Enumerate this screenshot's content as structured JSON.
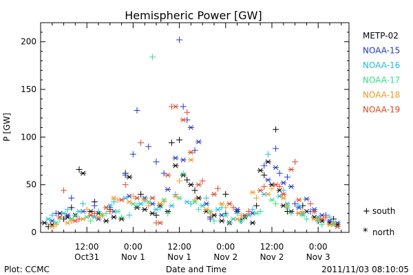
{
  "chart_data": {
    "type": "scatter",
    "title": "Hemispheric Power [GW]",
    "ylabel": "P [GW]",
    "xlabel": "Date and Time",
    "xlim": [
      0,
      80
    ],
    "ylim": [
      0,
      220
    ],
    "yticks": [
      0,
      50,
      100,
      150,
      200
    ],
    "xticks": [
      {
        "x": 12,
        "l1": "12:00",
        "l2": "Oct31"
      },
      {
        "x": 24,
        "l1": "0:00",
        "l2": "Nov 1"
      },
      {
        "x": 36,
        "l1": "12:00",
        "l2": "Nov 1"
      },
      {
        "x": 48,
        "l1": "0:00",
        "l2": "Nov 2"
      },
      {
        "x": 60,
        "l1": "12:00",
        "l2": "Nov 2"
      },
      {
        "x": 72,
        "l1": "0:00",
        "l2": "Nov 3"
      }
    ],
    "marker_legend": {
      "south": "south",
      "north": "north"
    },
    "series": [
      {
        "name": "METP-02",
        "color": "#000000",
        "south": [
          [
            2,
            6
          ],
          [
            6,
            14
          ],
          [
            8,
            26
          ],
          [
            10,
            66
          ],
          [
            14,
            32
          ],
          [
            18,
            24
          ],
          [
            22,
            62
          ],
          [
            26,
            40
          ],
          [
            30,
            18
          ],
          [
            34,
            94
          ],
          [
            36,
            97
          ],
          [
            38,
            55
          ],
          [
            40,
            44
          ],
          [
            44,
            16
          ],
          [
            48,
            40
          ],
          [
            52,
            14
          ],
          [
            56,
            28
          ],
          [
            58,
            60
          ],
          [
            61,
            108
          ],
          [
            64,
            22
          ],
          [
            68,
            28
          ],
          [
            72,
            12
          ],
          [
            76,
            14
          ]
        ],
        "north": [
          [
            1,
            10
          ],
          [
            3,
            8
          ],
          [
            5,
            20
          ],
          [
            7,
            16
          ],
          [
            9,
            18
          ],
          [
            11,
            62
          ],
          [
            13,
            22
          ],
          [
            15,
            20
          ],
          [
            17,
            12
          ],
          [
            19,
            16
          ],
          [
            21,
            14
          ],
          [
            23,
            58
          ],
          [
            25,
            26
          ],
          [
            27,
            24
          ],
          [
            29,
            20
          ],
          [
            31,
            28
          ],
          [
            33,
            22
          ],
          [
            35,
            70
          ],
          [
            37,
            60
          ],
          [
            39,
            50
          ],
          [
            41,
            36
          ],
          [
            43,
            22
          ],
          [
            45,
            18
          ],
          [
            47,
            12
          ],
          [
            49,
            10
          ],
          [
            51,
            22
          ],
          [
            53,
            16
          ],
          [
            55,
            10
          ],
          [
            57,
            65
          ],
          [
            59,
            74
          ],
          [
            60,
            50
          ],
          [
            62,
            44
          ],
          [
            63,
            28
          ],
          [
            65,
            22
          ],
          [
            67,
            20
          ],
          [
            69,
            22
          ],
          [
            71,
            16
          ],
          [
            73,
            12
          ],
          [
            75,
            10
          ],
          [
            77,
            8
          ]
        ]
      },
      {
        "name": "NOAA-15",
        "color": "#2233cc",
        "south": [
          [
            4,
            20
          ],
          [
            8,
            36
          ],
          [
            14,
            28
          ],
          [
            18,
            26
          ],
          [
            22,
            60
          ],
          [
            24,
            82
          ],
          [
            25,
            128
          ],
          [
            28,
            90
          ],
          [
            30,
            74
          ],
          [
            32,
            62
          ],
          [
            36,
            202
          ],
          [
            37,
            132
          ],
          [
            38,
            118
          ],
          [
            40,
            86
          ],
          [
            44,
            14
          ],
          [
            48,
            20
          ],
          [
            52,
            12
          ],
          [
            58,
            70
          ],
          [
            61,
            88
          ],
          [
            62,
            62
          ],
          [
            64,
            58
          ],
          [
            66,
            30
          ],
          [
            70,
            22
          ],
          [
            74,
            18
          ]
        ],
        "north": [
          [
            3,
            12
          ],
          [
            7,
            18
          ],
          [
            11,
            22
          ],
          [
            15,
            14
          ],
          [
            19,
            22
          ],
          [
            23,
            38
          ],
          [
            27,
            36
          ],
          [
            29,
            30
          ],
          [
            33,
            45
          ],
          [
            35,
            78
          ],
          [
            37,
            76
          ],
          [
            39,
            110
          ],
          [
            41,
            95
          ],
          [
            43,
            30
          ],
          [
            47,
            18
          ],
          [
            51,
            24
          ],
          [
            55,
            20
          ],
          [
            59,
            55
          ],
          [
            61,
            68
          ],
          [
            63,
            52
          ],
          [
            65,
            48
          ],
          [
            67,
            26
          ],
          [
            69,
            35
          ],
          [
            71,
            24
          ],
          [
            73,
            18
          ],
          [
            75,
            12
          ],
          [
            77,
            10
          ]
        ]
      },
      {
        "name": "NOAA-16",
        "color": "#22bbdd",
        "south": [
          [
            3,
            18
          ],
          [
            7,
            24
          ],
          [
            11,
            30
          ],
          [
            15,
            22
          ],
          [
            19,
            32
          ],
          [
            23,
            18
          ],
          [
            27,
            34
          ],
          [
            31,
            26
          ],
          [
            35,
            40
          ],
          [
            39,
            30
          ],
          [
            43,
            36
          ],
          [
            47,
            26
          ],
          [
            51,
            20
          ],
          [
            55,
            24
          ],
          [
            59,
            82
          ],
          [
            63,
            44
          ],
          [
            67,
            28
          ],
          [
            71,
            22
          ],
          [
            75,
            16
          ]
        ],
        "north": [
          [
            2,
            14
          ],
          [
            6,
            20
          ],
          [
            10,
            22
          ],
          [
            14,
            16
          ],
          [
            18,
            28
          ],
          [
            22,
            36
          ],
          [
            26,
            30
          ],
          [
            30,
            24
          ],
          [
            34,
            28
          ],
          [
            38,
            32
          ],
          [
            42,
            28
          ],
          [
            46,
            24
          ],
          [
            50,
            14
          ],
          [
            54,
            18
          ],
          [
            58,
            40
          ],
          [
            62,
            38
          ],
          [
            64,
            30
          ],
          [
            68,
            20
          ],
          [
            72,
            16
          ],
          [
            76,
            10
          ]
        ]
      },
      {
        "name": "NOAA-17",
        "color": "#33dd88",
        "south": [
          [
            5,
            14
          ],
          [
            9,
            18
          ],
          [
            13,
            12
          ],
          [
            17,
            20
          ],
          [
            21,
            16
          ],
          [
            25,
            28
          ],
          [
            29,
            184
          ],
          [
            33,
            20
          ],
          [
            37,
            62
          ],
          [
            41,
            24
          ],
          [
            45,
            12
          ],
          [
            49,
            10
          ],
          [
            53,
            16
          ],
          [
            57,
            22
          ],
          [
            61,
            30
          ],
          [
            65,
            20
          ],
          [
            69,
            14
          ],
          [
            73,
            8
          ]
        ],
        "north": [
          [
            4,
            10
          ],
          [
            8,
            14
          ],
          [
            12,
            16
          ],
          [
            16,
            18
          ],
          [
            20,
            22
          ],
          [
            24,
            30
          ],
          [
            28,
            32
          ],
          [
            32,
            34
          ],
          [
            36,
            36
          ],
          [
            40,
            32
          ],
          [
            44,
            22
          ],
          [
            48,
            18
          ],
          [
            52,
            12
          ],
          [
            56,
            20
          ],
          [
            60,
            34
          ],
          [
            64,
            26
          ],
          [
            68,
            18
          ],
          [
            72,
            12
          ],
          [
            76,
            8
          ]
        ]
      },
      {
        "name": "NOAA-18",
        "color": "#ee9922",
        "south": [
          [
            4,
            8
          ],
          [
            8,
            12
          ],
          [
            12,
            24
          ],
          [
            16,
            18
          ],
          [
            20,
            34
          ],
          [
            24,
            38
          ],
          [
            28,
            28
          ],
          [
            32,
            32
          ],
          [
            36,
            54
          ],
          [
            40,
            34
          ],
          [
            44,
            20
          ],
          [
            48,
            26
          ],
          [
            52,
            18
          ],
          [
            56,
            36
          ],
          [
            60,
            46
          ],
          [
            64,
            28
          ],
          [
            68,
            22
          ],
          [
            72,
            14
          ],
          [
            76,
            10
          ]
        ],
        "north": [
          [
            3,
            6
          ],
          [
            7,
            10
          ],
          [
            11,
            14
          ],
          [
            15,
            16
          ],
          [
            19,
            36
          ],
          [
            23,
            32
          ],
          [
            27,
            34
          ],
          [
            31,
            30
          ],
          [
            35,
            38
          ],
          [
            39,
            76
          ],
          [
            43,
            24
          ],
          [
            47,
            30
          ],
          [
            51,
            14
          ],
          [
            55,
            42
          ],
          [
            59,
            40
          ],
          [
            63,
            36
          ],
          [
            67,
            20
          ],
          [
            71,
            14
          ],
          [
            75,
            8
          ]
        ]
      },
      {
        "name": "NOAA-19",
        "color": "#dd4422",
        "south": [
          [
            6,
            44
          ],
          [
            10,
            14
          ],
          [
            14,
            20
          ],
          [
            18,
            22
          ],
          [
            22,
            50
          ],
          [
            26,
            94
          ],
          [
            30,
            10
          ],
          [
            34,
            132
          ],
          [
            38,
            126
          ],
          [
            42,
            54
          ],
          [
            46,
            46
          ],
          [
            50,
            26
          ],
          [
            54,
            22
          ],
          [
            58,
            48
          ],
          [
            62,
            48
          ],
          [
            66,
            74
          ],
          [
            70,
            30
          ],
          [
            74,
            16
          ]
        ],
        "north": [
          [
            5,
            16
          ],
          [
            9,
            12
          ],
          [
            13,
            18
          ],
          [
            17,
            26
          ],
          [
            21,
            34
          ],
          [
            25,
            36
          ],
          [
            29,
            36
          ],
          [
            31,
            10
          ],
          [
            33,
            60
          ],
          [
            35,
            132
          ],
          [
            37,
            118
          ],
          [
            39,
            84
          ],
          [
            41,
            50
          ],
          [
            45,
            40
          ],
          [
            49,
            30
          ],
          [
            53,
            18
          ],
          [
            57,
            44
          ],
          [
            61,
            50
          ],
          [
            63,
            40
          ],
          [
            65,
            66
          ],
          [
            67,
            34
          ],
          [
            71,
            22
          ],
          [
            73,
            14
          ],
          [
            77,
            6
          ]
        ]
      }
    ]
  },
  "footer": {
    "plot_credit": "Plot: CCMC",
    "timestamp": "2011/11/03 08:10:05"
  }
}
